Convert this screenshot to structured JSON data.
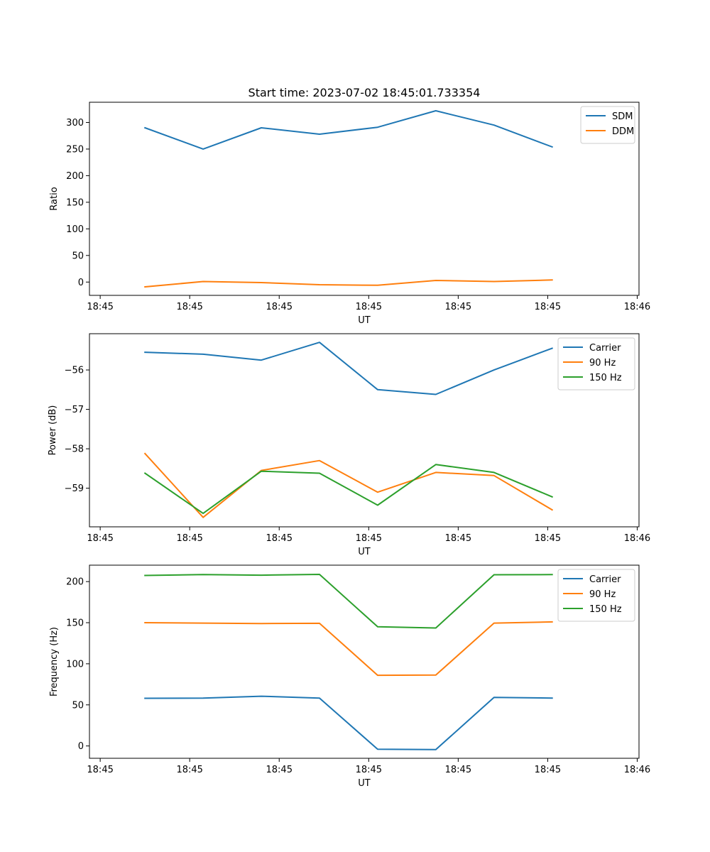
{
  "title": "Start time: 2023-07-02 18:45:01.733354",
  "chart_data": [
    {
      "type": "line",
      "title": "Start time: 2023-07-02 18:45:01.733354",
      "xlabel": "UT",
      "ylabel": "Ratio",
      "x_tick_labels": [
        "18:45",
        "18:45",
        "18:45",
        "18:45",
        "18:45",
        "18:45",
        "18:46"
      ],
      "x_tick_positions": [
        0,
        1,
        2,
        3,
        4,
        5,
        6
      ],
      "xlim": [
        -0.12,
        6.02
      ],
      "x": [
        0.5,
        1.15,
        1.8,
        2.45,
        3.1,
        3.75,
        4.4,
        5.05
      ],
      "ylim": [
        -25,
        338
      ],
      "yticks": [
        0,
        50,
        100,
        150,
        200,
        250,
        300
      ],
      "legend_loc": "upper right",
      "series": [
        {
          "name": "SDM",
          "color": "#1f77b4",
          "values": [
            290,
            250,
            290,
            278,
            291,
            322,
            295,
            254
          ]
        },
        {
          "name": "DDM",
          "color": "#ff7f0e",
          "values": [
            -9,
            1,
            -1,
            -5,
            -6,
            3,
            1,
            4
          ]
        }
      ]
    },
    {
      "type": "line",
      "title": "",
      "xlabel": "UT",
      "ylabel": "Power (dB)",
      "x_tick_labels": [
        "18:45",
        "18:45",
        "18:45",
        "18:45",
        "18:45",
        "18:45",
        "18:46"
      ],
      "x_tick_positions": [
        0,
        1,
        2,
        3,
        4,
        5,
        6
      ],
      "xlim": [
        -0.12,
        6.02
      ],
      "x": [
        0.5,
        1.15,
        1.8,
        2.45,
        3.1,
        3.75,
        4.4,
        5.05
      ],
      "ylim": [
        -59.98,
        -55.08
      ],
      "yticks": [
        -59,
        -58,
        -57,
        -56
      ],
      "legend_loc": "upper right",
      "series": [
        {
          "name": "Carrier",
          "color": "#1f77b4",
          "values": [
            -55.55,
            -55.6,
            -55.75,
            -55.3,
            -56.5,
            -56.62,
            -56.0,
            -55.45
          ]
        },
        {
          "name": "90 Hz",
          "color": "#ff7f0e",
          "values": [
            -58.12,
            -59.74,
            -58.55,
            -58.3,
            -59.1,
            -58.6,
            -58.68,
            -59.55
          ]
        },
        {
          "name": "150 Hz",
          "color": "#2ca02c",
          "values": [
            -58.62,
            -59.64,
            -58.57,
            -58.62,
            -59.43,
            -58.4,
            -58.6,
            -59.22
          ]
        }
      ]
    },
    {
      "type": "line",
      "title": "",
      "xlabel": "UT",
      "ylabel": "Frequency (Hz)",
      "x_tick_labels": [
        "18:45",
        "18:45",
        "18:45",
        "18:45",
        "18:45",
        "18:45",
        "18:46"
      ],
      "x_tick_positions": [
        0,
        1,
        2,
        3,
        4,
        5,
        6
      ],
      "xlim": [
        -0.12,
        6.02
      ],
      "x": [
        0.5,
        1.15,
        1.8,
        2.45,
        3.1,
        3.75,
        4.4,
        5.05
      ],
      "ylim": [
        -15,
        220
      ],
      "yticks": [
        0,
        50,
        100,
        150,
        200
      ],
      "legend_loc": "upper right",
      "series": [
        {
          "name": "Carrier",
          "color": "#1f77b4",
          "values": [
            58,
            58.3,
            60.5,
            58.3,
            -4,
            -4.5,
            59,
            58.3
          ]
        },
        {
          "name": "90 Hz",
          "color": "#ff7f0e",
          "values": [
            150,
            149.5,
            149,
            149.2,
            86,
            86.3,
            149.5,
            151
          ]
        },
        {
          "name": "150 Hz",
          "color": "#2ca02c",
          "values": [
            207.5,
            208.5,
            207.8,
            208.8,
            145,
            143.5,
            208.3,
            208.5
          ]
        }
      ]
    }
  ]
}
